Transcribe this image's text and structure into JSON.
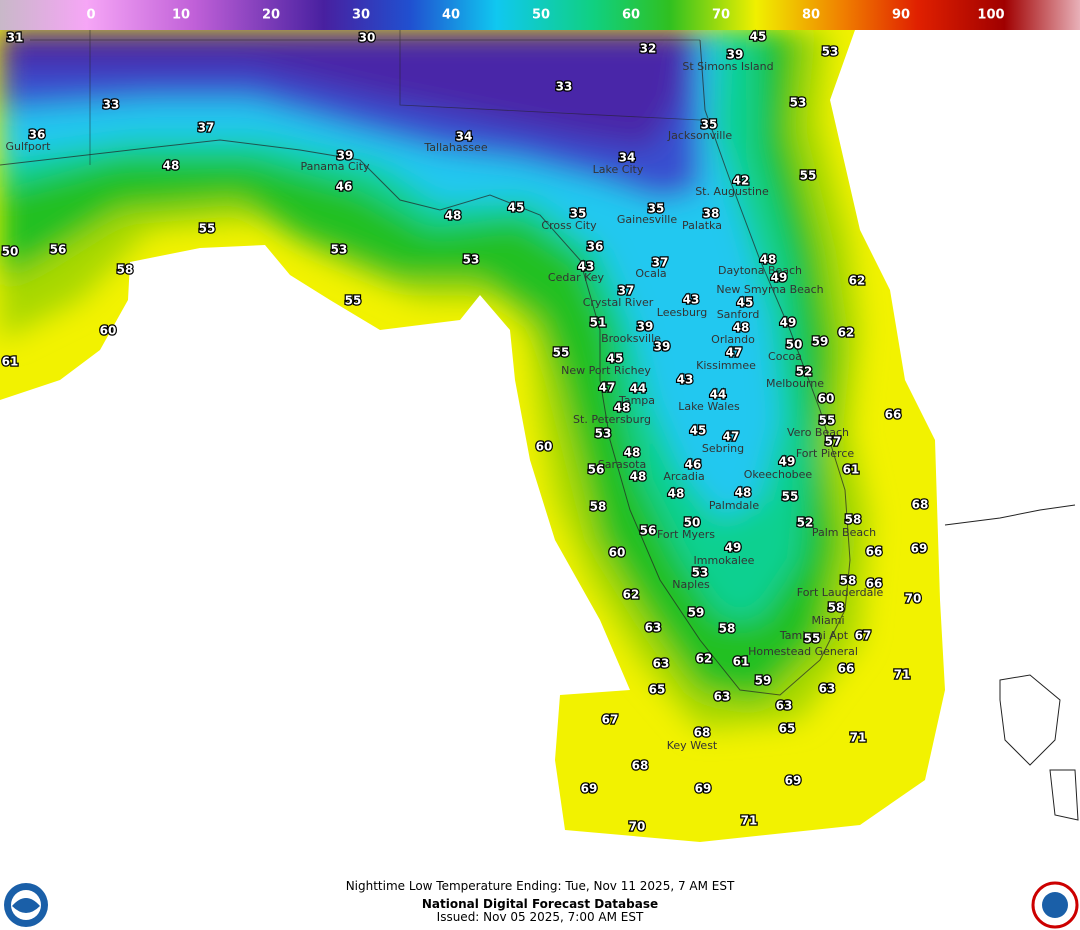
{
  "colorbar": {
    "ticks": [
      0,
      10,
      20,
      30,
      40,
      50,
      60,
      70,
      80,
      90,
      100
    ]
  },
  "stations": [
    31,
    30,
    32,
    39,
    45,
    53,
    33,
    33,
    53,
    37,
    36,
    34,
    35,
    39,
    34,
    48,
    46,
    42,
    55,
    45,
    48,
    35,
    35,
    38,
    55,
    36,
    53,
    50,
    56,
    53,
    43,
    37,
    48,
    49,
    62,
    58,
    37,
    43,
    45,
    55,
    51,
    39,
    48,
    49,
    62,
    60,
    59,
    50,
    39,
    47,
    55,
    45,
    52,
    61,
    43,
    47,
    44,
    44,
    60,
    48,
    66,
    55,
    45,
    47,
    53,
    57,
    60,
    48,
    49,
    46,
    56,
    61,
    48,
    48,
    48,
    55,
    58,
    68,
    52,
    58,
    50,
    56,
    69,
    66,
    49,
    60,
    53,
    58,
    66,
    62,
    70,
    59,
    58,
    63,
    58,
    67,
    55,
    62,
    61,
    63,
    66,
    71,
    59,
    63,
    65,
    63,
    63,
    67,
    65,
    68,
    71,
    68,
    69,
    69,
    69,
    71,
    70
  ],
  "cities": [
    "Gulfport",
    "Panama City",
    "Tallahassee",
    "Jacksonville",
    "St Simons Island",
    "Lake City",
    "St. Augustine",
    "Gainesville",
    "Cross City",
    "Palatka",
    "Cedar Key",
    "Ocala",
    "Daytona Beach",
    "New Smyrna Beach",
    "Crystal River",
    "Leesburg",
    "Sanford",
    "Brooksville",
    "Orlando",
    "Cocoa",
    "New Port Richey",
    "Kissimmee",
    "Melbourne",
    "Tampa",
    "Lake Wales",
    "St. Petersburg",
    "Vero Beach",
    "Sebring",
    "Sarasota",
    "Fort Pierce",
    "Okeechobee",
    "Arcadia",
    "Palmdale",
    "Palm Beach",
    "Fort Myers",
    "Immokalee",
    "Naples",
    "Fort Lauderdale",
    "Miami",
    "Tamiami Apt",
    "Homestead General",
    "Key West"
  ],
  "footer": {
    "line1": "Nighttime Low Temperature Ending: Tue, Nov 11 2025, 7 AM EST",
    "line2": "National Digital Forecast Database",
    "line3": "Issued: Nov 05 2025, 7:00 AM EST"
  }
}
